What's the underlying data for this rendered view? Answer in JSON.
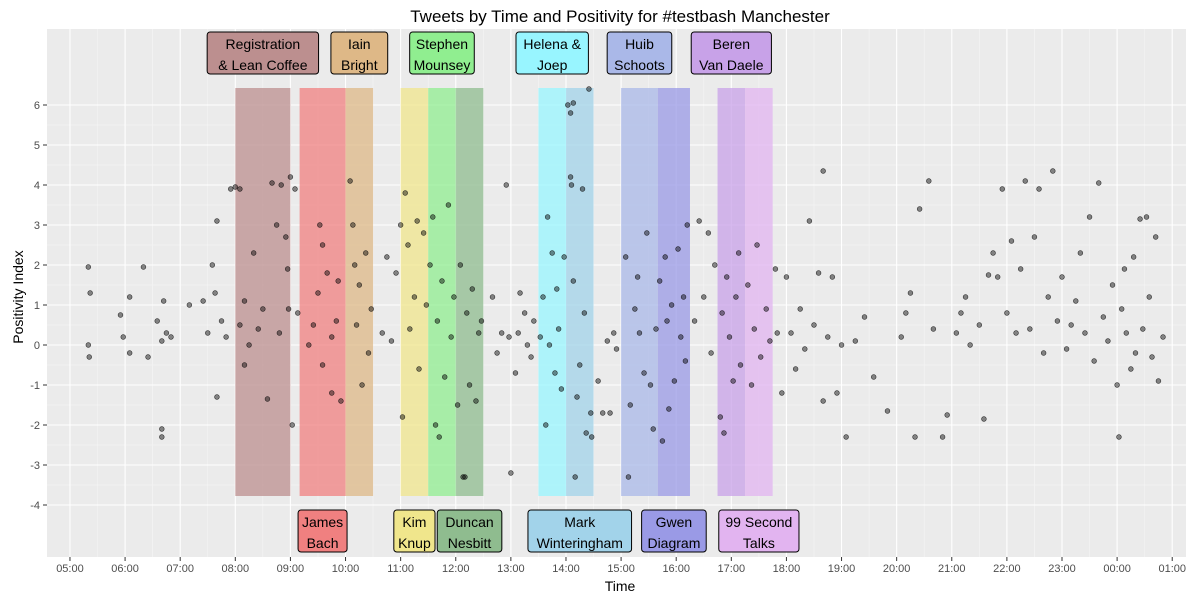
{
  "chart_data": {
    "type": "scatter",
    "title": "Tweets by Time and Positivity for #testbash Manchester",
    "xlabel": "Time",
    "ylabel": "Positivity Index",
    "x_ticks": [
      "05:00",
      "06:00",
      "07:00",
      "08:00",
      "09:00",
      "10:00",
      "11:00",
      "12:00",
      "13:00",
      "14:00",
      "15:00",
      "16:00",
      "17:00",
      "18:00",
      "19:00",
      "20:00",
      "21:00",
      "22:00",
      "23:00",
      "00:00",
      "01:00"
    ],
    "y_ticks": [
      -4,
      -3,
      -2,
      -1,
      0,
      1,
      2,
      3,
      4,
      5,
      6
    ],
    "xlim": [
      "04:35",
      "01:15"
    ],
    "ylim": [
      -5.3,
      7.9
    ],
    "grid": true,
    "point_color": "#000000",
    "point_alpha": 0.45,
    "sessions": [
      {
        "label": [
          "Registration",
          "& Lean Coffee"
        ],
        "start": "08:00",
        "end": "09:00",
        "color": "#bc8f8f",
        "label_position": "top"
      },
      {
        "label": [
          "James",
          "Bach"
        ],
        "start": "09:10",
        "end": "10:00",
        "color": "#f08080",
        "label_position": "bottom"
      },
      {
        "label": [
          "Iain",
          "Bright"
        ],
        "start": "10:00",
        "end": "10:30",
        "color": "#deb887",
        "label_position": "top"
      },
      {
        "label": [
          "Kim",
          "Knup"
        ],
        "start": "11:00",
        "end": "11:30",
        "color": "#f0e68c",
        "label_position": "bottom"
      },
      {
        "label": [
          "Stephen",
          "Mounsey"
        ],
        "start": "11:30",
        "end": "12:00",
        "color": "#90ee90",
        "label_position": "top"
      },
      {
        "label": [
          "Duncan",
          "Nesbitt"
        ],
        "start": "12:00",
        "end": "12:30",
        "color": "#8fbc8f",
        "label_position": "bottom"
      },
      {
        "label": [
          "Helena &",
          "Joep"
        ],
        "start": "13:30",
        "end": "14:00",
        "color": "#98f5ff",
        "label_position": "top"
      },
      {
        "label": [
          "Mark",
          "Winteringham"
        ],
        "start": "14:00",
        "end": "14:30",
        "color": "#a2d3ea",
        "label_position": "bottom"
      },
      {
        "label": [
          "Huib",
          "Schoots"
        ],
        "start": "15:00",
        "end": "15:40",
        "color": "#aab8e8",
        "label_position": "top"
      },
      {
        "label": [
          "Gwen",
          "Diagram"
        ],
        "start": "15:40",
        "end": "16:15",
        "color": "#9a9ae6",
        "label_position": "bottom"
      },
      {
        "label": [
          "Beren",
          "Van Daele"
        ],
        "start": "16:45",
        "end": "17:15",
        "color": "#c8a2e8",
        "label_position": "top"
      },
      {
        "label": [
          "99 Second",
          "Talks"
        ],
        "start": "17:15",
        "end": "17:45",
        "color": "#e2b4f0",
        "label_position": "bottom"
      }
    ],
    "points": [
      [
        "05:20",
        1.95
      ],
      [
        "05:22",
        1.3
      ],
      [
        "05:20",
        0.0
      ],
      [
        "05:21",
        -0.3
      ],
      [
        "05:55",
        0.75
      ],
      [
        "06:05",
        1.2
      ],
      [
        "05:58",
        0.2
      ],
      [
        "06:05",
        -0.2
      ],
      [
        "06:20",
        1.95
      ],
      [
        "06:25",
        -0.3
      ],
      [
        "06:35",
        0.6
      ],
      [
        "06:40",
        0.1
      ],
      [
        "06:42",
        1.1
      ],
      [
        "06:45",
        0.3
      ],
      [
        "06:40",
        -2.1
      ],
      [
        "06:40",
        -2.3
      ],
      [
        "06:50",
        0.2
      ],
      [
        "07:10",
        1.0
      ],
      [
        "07:25",
        1.1
      ],
      [
        "07:30",
        0.3
      ],
      [
        "07:35",
        2.0
      ],
      [
        "07:38",
        1.3
      ],
      [
        "07:40",
        3.1
      ],
      [
        "07:45",
        0.6
      ],
      [
        "07:40",
        -1.3
      ],
      [
        "07:50",
        0.2
      ],
      [
        "07:55",
        3.9
      ],
      [
        "08:00",
        3.95
      ],
      [
        "08:05",
        3.9
      ],
      [
        "08:05",
        0.5
      ],
      [
        "08:10",
        1.1
      ],
      [
        "08:15",
        0.0
      ],
      [
        "08:10",
        -0.5
      ],
      [
        "08:20",
        2.3
      ],
      [
        "08:25",
        0.4
      ],
      [
        "08:30",
        0.9
      ],
      [
        "08:35",
        -1.35
      ],
      [
        "08:40",
        4.05
      ],
      [
        "08:45",
        3.0
      ],
      [
        "08:48",
        0.3
      ],
      [
        "08:50",
        4.0
      ],
      [
        "08:55",
        2.7
      ],
      [
        "08:57",
        1.9
      ],
      [
        "08:58",
        0.9
      ],
      [
        "09:00",
        4.2
      ],
      [
        "09:02",
        -2.0
      ],
      [
        "09:05",
        3.9
      ],
      [
        "09:08",
        0.8
      ],
      [
        "09:20",
        0.0
      ],
      [
        "09:25",
        0.5
      ],
      [
        "09:30",
        1.3
      ],
      [
        "09:32",
        3.0
      ],
      [
        "09:35",
        2.5
      ],
      [
        "09:35",
        -0.5
      ],
      [
        "09:40",
        1.8
      ],
      [
        "09:45",
        0.2
      ],
      [
        "09:45",
        -1.2
      ],
      [
        "09:50",
        0.6
      ],
      [
        "09:52",
        1.6
      ],
      [
        "09:55",
        -1.4
      ],
      [
        "10:05",
        4.1
      ],
      [
        "10:08",
        3.0
      ],
      [
        "10:10",
        2.0
      ],
      [
        "10:12",
        0.5
      ],
      [
        "10:15",
        1.5
      ],
      [
        "10:18",
        -1.0
      ],
      [
        "10:22",
        2.3
      ],
      [
        "10:25",
        -0.2
      ],
      [
        "10:28",
        0.9
      ],
      [
        "10:40",
        0.3
      ],
      [
        "10:45",
        2.2
      ],
      [
        "10:50",
        0.1
      ],
      [
        "10:55",
        1.8
      ],
      [
        "11:00",
        3.0
      ],
      [
        "11:02",
        -1.8
      ],
      [
        "11:05",
        3.8
      ],
      [
        "11:08",
        2.5
      ],
      [
        "11:10",
        0.4
      ],
      [
        "11:12",
        -4.4
      ],
      [
        "11:15",
        1.2
      ],
      [
        "11:18",
        3.1
      ],
      [
        "11:20",
        -0.6
      ],
      [
        "11:25",
        2.8
      ],
      [
        "11:28",
        1.0
      ],
      [
        "11:32",
        2.0
      ],
      [
        "11:35",
        3.2
      ],
      [
        "11:38",
        -2.0
      ],
      [
        "11:40",
        0.6
      ],
      [
        "11:42",
        -2.3
      ],
      [
        "11:45",
        1.6
      ],
      [
        "11:48",
        -0.8
      ],
      [
        "11:52",
        3.5
      ],
      [
        "11:55",
        0.2
      ],
      [
        "11:58",
        1.2
      ],
      [
        "12:02",
        -1.5
      ],
      [
        "12:05",
        2.0
      ],
      [
        "12:08",
        -3.3
      ],
      [
        "12:10",
        -3.3
      ],
      [
        "12:12",
        0.8
      ],
      [
        "12:15",
        -1.0
      ],
      [
        "12:18",
        1.4
      ],
      [
        "12:22",
        -1.4
      ],
      [
        "12:25",
        0.3
      ],
      [
        "12:28",
        0.6
      ],
      [
        "12:40",
        1.2
      ],
      [
        "12:45",
        -0.2
      ],
      [
        "12:50",
        0.3
      ],
      [
        "12:55",
        4.0
      ],
      [
        "12:58",
        0.2
      ],
      [
        "13:00",
        -3.2
      ],
      [
        "13:05",
        -0.7
      ],
      [
        "13:08",
        0.3
      ],
      [
        "13:10",
        1.3
      ],
      [
        "13:15",
        0.8
      ],
      [
        "13:18",
        0.0
      ],
      [
        "13:22",
        -0.3
      ],
      [
        "13:25",
        0.6
      ],
      [
        "13:32",
        0.2
      ],
      [
        "13:35",
        1.2
      ],
      [
        "13:38",
        -2.0
      ],
      [
        "13:40",
        3.2
      ],
      [
        "13:42",
        0.0
      ],
      [
        "13:45",
        2.3
      ],
      [
        "13:48",
        -0.7
      ],
      [
        "13:50",
        1.4
      ],
      [
        "13:52",
        0.4
      ],
      [
        "13:55",
        -1.1
      ],
      [
        "13:58",
        2.2
      ],
      [
        "14:02",
        6.0
      ],
      [
        "14:05",
        5.8
      ],
      [
        "14:08",
        6.05
      ],
      [
        "14:05",
        4.2
      ],
      [
        "14:06",
        4.0
      ],
      [
        "14:08",
        1.6
      ],
      [
        "14:10",
        -3.3
      ],
      [
        "14:12",
        -1.3
      ],
      [
        "14:15",
        -0.5
      ],
      [
        "14:18",
        3.9
      ],
      [
        "14:20",
        0.8
      ],
      [
        "14:22",
        -2.2
      ],
      [
        "14:25",
        6.4
      ],
      [
        "14:27",
        -1.7
      ],
      [
        "14:28",
        -2.3
      ],
      [
        "14:35",
        -0.9
      ],
      [
        "14:40",
        -1.7
      ],
      [
        "14:45",
        0.1
      ],
      [
        "14:48",
        -1.7
      ],
      [
        "14:52",
        0.3
      ],
      [
        "14:55",
        -0.1
      ],
      [
        "15:05",
        2.2
      ],
      [
        "15:08",
        -3.3
      ],
      [
        "15:10",
        -1.5
      ],
      [
        "15:15",
        0.9
      ],
      [
        "15:18",
        1.7
      ],
      [
        "15:20",
        0.3
      ],
      [
        "15:25",
        -0.7
      ],
      [
        "15:28",
        2.8
      ],
      [
        "15:32",
        -1.0
      ],
      [
        "15:35",
        -2.1
      ],
      [
        "15:38",
        0.4
      ],
      [
        "15:42",
        1.6
      ],
      [
        "15:45",
        -2.4
      ],
      [
        "15:48",
        2.2
      ],
      [
        "15:50",
        0.6
      ],
      [
        "15:52",
        -1.6
      ],
      [
        "15:55",
        1.0
      ],
      [
        "15:58",
        -0.9
      ],
      [
        "16:02",
        2.4
      ],
      [
        "16:05",
        0.2
      ],
      [
        "16:08",
        1.2
      ],
      [
        "16:10",
        -0.4
      ],
      [
        "16:12",
        3.0
      ],
      [
        "16:20",
        0.6
      ],
      [
        "16:25",
        3.1
      ],
      [
        "16:30",
        1.2
      ],
      [
        "16:35",
        2.8
      ],
      [
        "16:38",
        -0.2
      ],
      [
        "16:42",
        2.0
      ],
      [
        "16:48",
        -1.8
      ],
      [
        "16:50",
        0.8
      ],
      [
        "16:52",
        -2.2
      ],
      [
        "16:55",
        1.7
      ],
      [
        "16:58",
        0.2
      ],
      [
        "17:02",
        -0.9
      ],
      [
        "17:05",
        1.2
      ],
      [
        "17:08",
        2.3
      ],
      [
        "17:10",
        -0.5
      ],
      [
        "17:18",
        1.5
      ],
      [
        "17:22",
        -1.0
      ],
      [
        "17:25",
        0.4
      ],
      [
        "17:28",
        2.5
      ],
      [
        "17:32",
        -0.3
      ],
      [
        "17:38",
        0.9
      ],
      [
        "17:42",
        0.1
      ],
      [
        "17:48",
        1.9
      ],
      [
        "17:50",
        0.3
      ],
      [
        "17:55",
        -1.2
      ],
      [
        "18:00",
        1.7
      ],
      [
        "18:05",
        0.3
      ],
      [
        "18:10",
        -0.6
      ],
      [
        "18:15",
        0.9
      ],
      [
        "18:20",
        -0.1
      ],
      [
        "18:25",
        3.1
      ],
      [
        "18:30",
        0.5
      ],
      [
        "18:35",
        1.8
      ],
      [
        "18:40",
        4.35
      ],
      [
        "18:40",
        -1.4
      ],
      [
        "18:45",
        0.2
      ],
      [
        "18:50",
        1.7
      ],
      [
        "18:55",
        -1.2
      ],
      [
        "19:00",
        0.0
      ],
      [
        "19:05",
        -2.3
      ],
      [
        "19:15",
        0.1
      ],
      [
        "19:25",
        0.7
      ],
      [
        "19:35",
        -0.8
      ],
      [
        "19:50",
        -1.65
      ],
      [
        "20:05",
        0.2
      ],
      [
        "20:10",
        0.8
      ],
      [
        "20:15",
        1.3
      ],
      [
        "20:20",
        -2.3
      ],
      [
        "20:25",
        3.4
      ],
      [
        "20:35",
        4.1
      ],
      [
        "20:40",
        0.4
      ],
      [
        "20:50",
        -2.3
      ],
      [
        "20:55",
        -1.75
      ],
      [
        "21:05",
        0.3
      ],
      [
        "21:10",
        0.8
      ],
      [
        "21:15",
        1.2
      ],
      [
        "21:20",
        0.0
      ],
      [
        "21:30",
        0.5
      ],
      [
        "21:35",
        -1.85
      ],
      [
        "21:40",
        1.75
      ],
      [
        "21:45",
        2.3
      ],
      [
        "21:50",
        1.7
      ],
      [
        "21:55",
        3.9
      ],
      [
        "22:00",
        0.8
      ],
      [
        "22:05",
        2.6
      ],
      [
        "22:10",
        0.3
      ],
      [
        "22:15",
        1.9
      ],
      [
        "22:20",
        4.1
      ],
      [
        "22:25",
        0.4
      ],
      [
        "22:30",
        2.7
      ],
      [
        "22:35",
        3.9
      ],
      [
        "22:40",
        -0.2
      ],
      [
        "22:45",
        1.2
      ],
      [
        "22:50",
        4.35
      ],
      [
        "22:55",
        0.6
      ],
      [
        "23:00",
        1.7
      ],
      [
        "23:05",
        -0.1
      ],
      [
        "23:10",
        0.5
      ],
      [
        "23:15",
        1.1
      ],
      [
        "23:20",
        2.3
      ],
      [
        "23:25",
        0.3
      ],
      [
        "23:30",
        3.2
      ],
      [
        "23:35",
        -0.4
      ],
      [
        "23:40",
        4.05
      ],
      [
        "23:45",
        0.7
      ],
      [
        "23:50",
        0.1
      ],
      [
        "23:55",
        1.5
      ],
      [
        "00:00",
        -1.0
      ],
      [
        "00:02",
        -2.3
      ],
      [
        "00:05",
        0.9
      ],
      [
        "00:08",
        1.9
      ],
      [
        "00:10",
        0.3
      ],
      [
        "00:15",
        -0.6
      ],
      [
        "00:18",
        2.2
      ],
      [
        "00:20",
        -0.2
      ],
      [
        "00:25",
        3.15
      ],
      [
        "00:28",
        0.4
      ],
      [
        "00:32",
        3.2
      ],
      [
        "00:35",
        1.2
      ],
      [
        "00:38",
        -0.3
      ],
      [
        "00:42",
        2.7
      ],
      [
        "00:45",
        -0.9
      ],
      [
        "00:50",
        0.2
      ]
    ]
  }
}
